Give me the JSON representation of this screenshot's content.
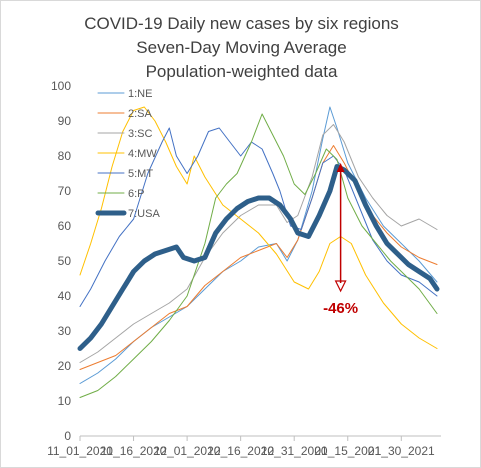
{
  "chart_data": {
    "type": "line",
    "title": [
      "COVID-19 Daily new cases by six regions",
      "Seven-Day Moving Average",
      "Population-weighted data"
    ],
    "xlabel": "",
    "ylabel": "",
    "ylim": [
      0,
      100
    ],
    "yticks": [
      0,
      10,
      20,
      30,
      40,
      50,
      60,
      70,
      80,
      90,
      100
    ],
    "xrange": [
      "2020-11-01",
      "2021-02-09"
    ],
    "xticks": [
      {
        "date": "2020-11-01",
        "label": "11_01_2020"
      },
      {
        "date": "2020-11-16",
        "label": "11_16_2020"
      },
      {
        "date": "2020-12-01",
        "label": "12_01_2020"
      },
      {
        "date": "2020-12-16",
        "label": "12_16_2020"
      },
      {
        "date": "2020-12-31",
        "label": "12_31_2020"
      },
      {
        "date": "2021-01-15",
        "label": "01_15_2021"
      },
      {
        "date": "2021-01-30",
        "label": "01_30_2021"
      }
    ],
    "grid": false,
    "legend_position": "top-left",
    "series": [
      {
        "name": "1:NE",
        "color": "#5b9bd5",
        "width": 1,
        "points": [
          [
            "2020-11-01",
            15
          ],
          [
            "2020-11-06",
            18
          ],
          [
            "2020-11-11",
            22
          ],
          [
            "2020-11-16",
            27
          ],
          [
            "2020-11-21",
            31
          ],
          [
            "2020-11-26",
            34
          ],
          [
            "2020-12-01",
            37
          ],
          [
            "2020-12-06",
            42
          ],
          [
            "2020-12-11",
            47
          ],
          [
            "2020-12-16",
            50
          ],
          [
            "2020-12-21",
            54
          ],
          [
            "2020-12-26",
            55
          ],
          [
            "2020-12-29",
            50
          ],
          [
            "2021-01-01",
            56
          ],
          [
            "2021-01-05",
            70
          ],
          [
            "2021-01-08",
            85
          ],
          [
            "2021-01-10",
            94
          ],
          [
            "2021-01-12",
            88
          ],
          [
            "2021-01-15",
            78
          ],
          [
            "2021-01-20",
            68
          ],
          [
            "2021-01-25",
            60
          ],
          [
            "2021-01-30",
            55
          ],
          [
            "2021-02-04",
            50
          ],
          [
            "2021-02-09",
            44
          ]
        ]
      },
      {
        "name": "2:SA",
        "color": "#ed7d31",
        "width": 1,
        "points": [
          [
            "2020-11-01",
            19
          ],
          [
            "2020-11-06",
            21
          ],
          [
            "2020-11-11",
            23
          ],
          [
            "2020-11-16",
            27
          ],
          [
            "2020-11-21",
            31
          ],
          [
            "2020-11-26",
            35
          ],
          [
            "2020-12-01",
            37
          ],
          [
            "2020-12-06",
            43
          ],
          [
            "2020-12-11",
            47
          ],
          [
            "2020-12-16",
            51
          ],
          [
            "2020-12-21",
            53
          ],
          [
            "2020-12-26",
            55
          ],
          [
            "2020-12-29",
            51
          ],
          [
            "2021-01-01",
            56
          ],
          [
            "2021-01-05",
            68
          ],
          [
            "2021-01-08",
            78
          ],
          [
            "2021-01-11",
            83
          ],
          [
            "2021-01-14",
            78
          ],
          [
            "2021-01-18",
            70
          ],
          [
            "2021-01-22",
            63
          ],
          [
            "2021-01-26",
            58
          ],
          [
            "2021-01-30",
            54
          ],
          [
            "2021-02-04",
            51
          ],
          [
            "2021-02-09",
            49
          ]
        ]
      },
      {
        "name": "3:SC",
        "color": "#a5a5a5",
        "width": 1,
        "points": [
          [
            "2020-11-01",
            21
          ],
          [
            "2020-11-06",
            24
          ],
          [
            "2020-11-11",
            28
          ],
          [
            "2020-11-16",
            32
          ],
          [
            "2020-11-21",
            35
          ],
          [
            "2020-11-26",
            38
          ],
          [
            "2020-12-01",
            42
          ],
          [
            "2020-12-06",
            51
          ],
          [
            "2020-12-11",
            58
          ],
          [
            "2020-12-16",
            63
          ],
          [
            "2020-12-21",
            66
          ],
          [
            "2020-12-26",
            66
          ],
          [
            "2020-12-29",
            61
          ],
          [
            "2021-01-01",
            63
          ],
          [
            "2021-01-05",
            74
          ],
          [
            "2021-01-08",
            86
          ],
          [
            "2021-01-11",
            89
          ],
          [
            "2021-01-14",
            84
          ],
          [
            "2021-01-18",
            74
          ],
          [
            "2021-01-22",
            68
          ],
          [
            "2021-01-26",
            63
          ],
          [
            "2021-01-30",
            60
          ],
          [
            "2021-02-04",
            62
          ],
          [
            "2021-02-09",
            59
          ]
        ]
      },
      {
        "name": "4:MW",
        "color": "#ffc000",
        "width": 1,
        "points": [
          [
            "2020-11-01",
            46
          ],
          [
            "2020-11-04",
            55
          ],
          [
            "2020-11-07",
            65
          ],
          [
            "2020-11-10",
            77
          ],
          [
            "2020-11-13",
            87
          ],
          [
            "2020-11-16",
            93
          ],
          [
            "2020-11-19",
            94
          ],
          [
            "2020-11-22",
            90
          ],
          [
            "2020-11-25",
            84
          ],
          [
            "2020-11-28",
            77
          ],
          [
            "2020-12-01",
            72
          ],
          [
            "2020-12-03",
            80
          ],
          [
            "2020-12-06",
            74
          ],
          [
            "2020-12-11",
            66
          ],
          [
            "2020-12-16",
            62
          ],
          [
            "2020-12-21",
            58
          ],
          [
            "2020-12-26",
            52
          ],
          [
            "2020-12-31",
            44
          ],
          [
            "2021-01-04",
            42
          ],
          [
            "2021-01-07",
            47
          ],
          [
            "2021-01-10",
            55
          ],
          [
            "2021-01-13",
            57
          ],
          [
            "2021-01-16",
            55
          ],
          [
            "2021-01-20",
            46
          ],
          [
            "2021-01-25",
            38
          ],
          [
            "2021-01-30",
            32
          ],
          [
            "2021-02-04",
            28
          ],
          [
            "2021-02-09",
            25
          ]
        ]
      },
      {
        "name": "5:MT",
        "color": "#4472c4",
        "width": 1,
        "points": [
          [
            "2020-11-01",
            37
          ],
          [
            "2020-11-04",
            42
          ],
          [
            "2020-11-08",
            50
          ],
          [
            "2020-11-12",
            57
          ],
          [
            "2020-11-16",
            62
          ],
          [
            "2020-11-20",
            75
          ],
          [
            "2020-11-24",
            84
          ],
          [
            "2020-11-26",
            88
          ],
          [
            "2020-11-28",
            80
          ],
          [
            "2020-12-01",
            75
          ],
          [
            "2020-12-04",
            80
          ],
          [
            "2020-12-07",
            87
          ],
          [
            "2020-12-10",
            88
          ],
          [
            "2020-12-13",
            84
          ],
          [
            "2020-12-16",
            80
          ],
          [
            "2020-12-19",
            84
          ],
          [
            "2020-12-22",
            82
          ],
          [
            "2020-12-25",
            75
          ],
          [
            "2020-12-27",
            70
          ],
          [
            "2020-12-30",
            60
          ],
          [
            "2021-01-02",
            59
          ],
          [
            "2021-01-05",
            68
          ],
          [
            "2021-01-08",
            78
          ],
          [
            "2021-01-11",
            80
          ],
          [
            "2021-01-14",
            76
          ],
          [
            "2021-01-18",
            66
          ],
          [
            "2021-01-22",
            56
          ],
          [
            "2021-01-26",
            50
          ],
          [
            "2021-01-30",
            46
          ],
          [
            "2021-02-04",
            44
          ],
          [
            "2021-02-09",
            40
          ]
        ]
      },
      {
        "name": "6:P",
        "color": "#70ad47",
        "width": 1,
        "points": [
          [
            "2020-11-01",
            11
          ],
          [
            "2020-11-06",
            13
          ],
          [
            "2020-11-11",
            17
          ],
          [
            "2020-11-16",
            22
          ],
          [
            "2020-11-21",
            27
          ],
          [
            "2020-11-26",
            33
          ],
          [
            "2020-12-01",
            40
          ],
          [
            "2020-12-06",
            55
          ],
          [
            "2020-12-09",
            68
          ],
          [
            "2020-12-12",
            72
          ],
          [
            "2020-12-15",
            75
          ],
          [
            "2020-12-19",
            84
          ],
          [
            "2020-12-22",
            92
          ],
          [
            "2020-12-25",
            86
          ],
          [
            "2020-12-28",
            80
          ],
          [
            "2020-12-31",
            72
          ],
          [
            "2021-01-03",
            69
          ],
          [
            "2021-01-06",
            75
          ],
          [
            "2021-01-09",
            82
          ],
          [
            "2021-01-12",
            79
          ],
          [
            "2021-01-15",
            68
          ],
          [
            "2021-01-19",
            60
          ],
          [
            "2021-01-23",
            55
          ],
          [
            "2021-01-27",
            50
          ],
          [
            "2021-01-31",
            46
          ],
          [
            "2021-02-04",
            42
          ],
          [
            "2021-02-09",
            35
          ]
        ]
      },
      {
        "name": "7:USA",
        "color": "#2e5f8a",
        "width": 5,
        "points": [
          [
            "2020-11-01",
            25
          ],
          [
            "2020-11-04",
            28
          ],
          [
            "2020-11-07",
            32
          ],
          [
            "2020-11-10",
            37
          ],
          [
            "2020-11-13",
            42
          ],
          [
            "2020-11-16",
            47
          ],
          [
            "2020-11-19",
            50
          ],
          [
            "2020-11-22",
            52
          ],
          [
            "2020-11-25",
            53
          ],
          [
            "2020-11-28",
            54
          ],
          [
            "2020-11-30",
            51
          ],
          [
            "2020-12-03",
            50
          ],
          [
            "2020-12-06",
            51
          ],
          [
            "2020-12-09",
            58
          ],
          [
            "2020-12-12",
            62
          ],
          [
            "2020-12-15",
            65
          ],
          [
            "2020-12-18",
            67
          ],
          [
            "2020-12-21",
            68
          ],
          [
            "2020-12-24",
            68
          ],
          [
            "2020-12-27",
            66
          ],
          [
            "2020-12-30",
            62
          ],
          [
            "2021-01-01",
            58
          ],
          [
            "2021-01-04",
            57
          ],
          [
            "2021-01-07",
            63
          ],
          [
            "2021-01-10",
            70
          ],
          [
            "2021-01-12",
            77
          ],
          [
            "2021-01-14",
            76
          ],
          [
            "2021-01-17",
            73
          ],
          [
            "2021-01-20",
            66
          ],
          [
            "2021-01-23",
            60
          ],
          [
            "2021-01-26",
            55
          ],
          [
            "2021-01-29",
            52
          ],
          [
            "2021-02-01",
            49
          ],
          [
            "2021-02-04",
            47
          ],
          [
            "2021-02-07",
            45
          ],
          [
            "2021-02-09",
            42
          ]
        ]
      }
    ],
    "annotation": {
      "text": "-46%",
      "color": "#c00000",
      "date": "2021-01-13",
      "from": 78,
      "to": 42
    }
  }
}
